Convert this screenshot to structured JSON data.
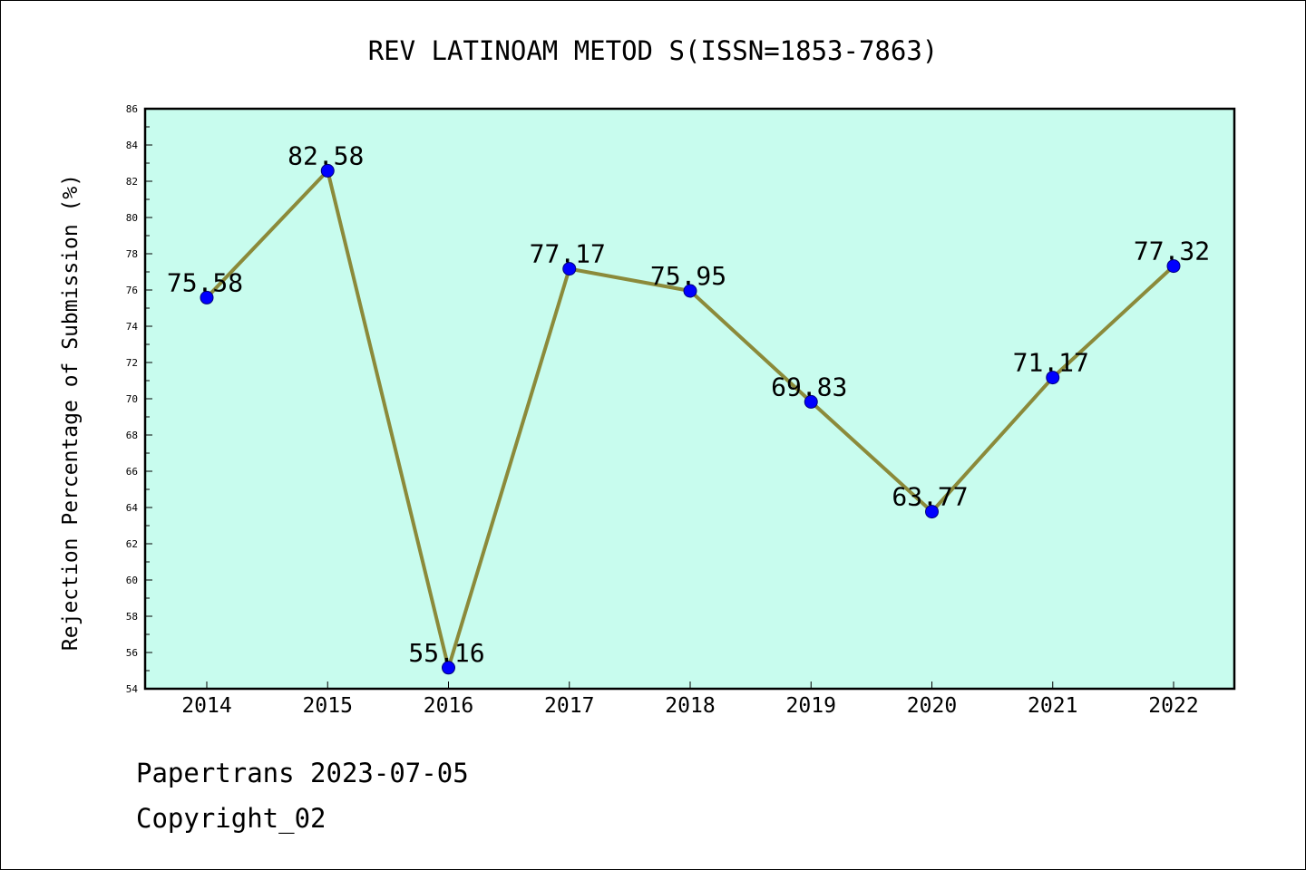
{
  "chart_data": {
    "type": "line",
    "title": "REV LATINOAM METOD S(ISSN=1853-7863)",
    "xlabel": "",
    "ylabel": "Rejection Percentage of Submission (%)",
    "categories": [
      "2014",
      "2015",
      "2016",
      "2017",
      "2018",
      "2019",
      "2020",
      "2021",
      "2022"
    ],
    "series": [
      {
        "values": [
          75.58,
          82.58,
          55.16,
          77.17,
          75.95,
          69.83,
          63.77,
          71.17,
          77.32
        ],
        "data_labels": [
          "75.58",
          "82.58",
          "55.16",
          "77.17",
          "75.95",
          "69.83",
          "63.77",
          "71.17",
          "77.32"
        ]
      }
    ],
    "ylim": [
      54,
      86
    ],
    "y_ticks": [
      "54",
      "56",
      "58",
      "60",
      "62",
      "64",
      "66",
      "68",
      "70",
      "72",
      "74",
      "76",
      "78",
      "80",
      "82",
      "84",
      "86"
    ],
    "grid": false,
    "legend": "none",
    "colors": {
      "plot_background": "#c8fcee",
      "line": "#8b8a3a",
      "marker": "#0000ff",
      "marker_edge": "#00007a"
    }
  },
  "footer": {
    "line1": "Papertrans 2023-07-05",
    "line2": "Copyright_02"
  }
}
